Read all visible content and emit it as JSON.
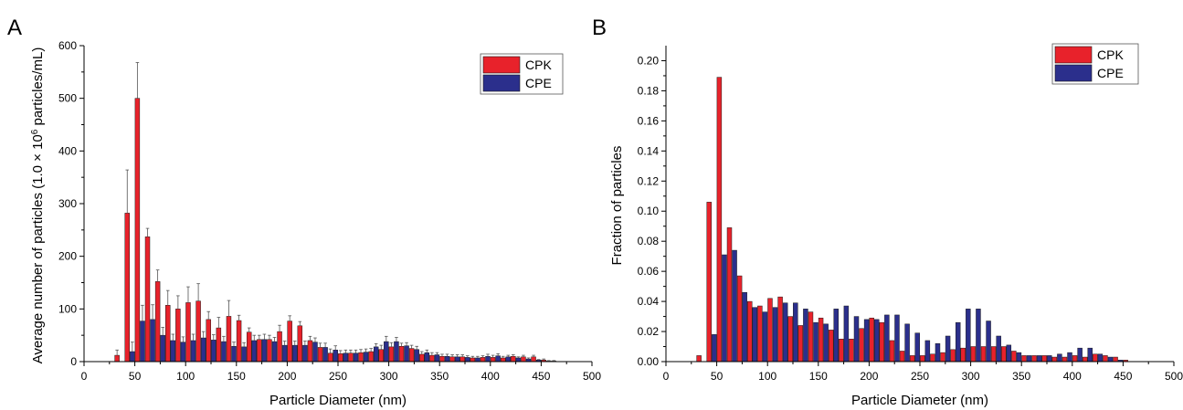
{
  "colors": {
    "cpk": "#e8222b",
    "cpe": "#2b2f8c",
    "axis": "#000000",
    "errbar": "#555555"
  },
  "chart_data": [
    {
      "panel_label": "A",
      "type": "bar",
      "xlabel": "Particle Diameter (nm)",
      "ylabel_parts": [
        "Average number of particles (1.0 × 10",
        "6",
        " particles/mL)"
      ],
      "xlim": [
        0,
        500
      ],
      "ylim": [
        0,
        600
      ],
      "xticks": [
        0,
        50,
        100,
        150,
        200,
        250,
        300,
        350,
        400,
        450,
        500
      ],
      "yticks": [
        0,
        100,
        200,
        300,
        400,
        500,
        600
      ],
      "x": [
        35,
        45,
        55,
        65,
        75,
        85,
        95,
        105,
        115,
        125,
        135,
        145,
        155,
        165,
        175,
        185,
        195,
        205,
        215,
        225,
        235,
        245,
        255,
        265,
        275,
        285,
        295,
        305,
        315,
        325,
        335,
        345,
        355,
        365,
        375,
        385,
        395,
        405,
        415,
        425,
        435,
        445,
        455,
        465
      ],
      "series": [
        {
          "name": "CPK",
          "color_key": "cpk",
          "values": [
            12,
            282,
            500,
            237,
            152,
            107,
            100,
            112,
            115,
            80,
            64,
            86,
            78,
            56,
            42,
            42,
            57,
            77,
            68,
            40,
            27,
            16,
            15,
            16,
            17,
            19,
            23,
            28,
            29,
            25,
            14,
            12,
            10,
            9,
            9,
            7,
            8,
            8,
            7,
            10,
            9,
            9,
            3,
            1
          ],
          "errors": [
            10,
            82,
            68,
            16,
            22,
            28,
            25,
            30,
            33,
            15,
            20,
            30,
            10,
            8,
            8,
            8,
            12,
            10,
            8,
            8,
            8,
            8,
            6,
            6,
            6,
            6,
            8,
            8,
            6,
            6,
            5,
            5,
            4,
            4,
            4,
            3,
            3,
            4,
            3,
            3,
            3,
            3,
            2,
            1
          ]
        },
        {
          "name": "CPE",
          "color_key": "cpe",
          "values": [
            0,
            19,
            77,
            80,
            50,
            40,
            37,
            40,
            45,
            41,
            38,
            29,
            28,
            40,
            42,
            38,
            31,
            31,
            31,
            37,
            27,
            22,
            16,
            16,
            18,
            28,
            38,
            38,
            30,
            23,
            17,
            13,
            10,
            9,
            8,
            7,
            10,
            11,
            9,
            7,
            5,
            3,
            1,
            0
          ],
          "errors": [
            0,
            18,
            30,
            28,
            15,
            12,
            10,
            12,
            12,
            10,
            10,
            8,
            8,
            10,
            10,
            8,
            8,
            8,
            8,
            8,
            8,
            8,
            6,
            6,
            6,
            6,
            10,
            8,
            6,
            6,
            5,
            4,
            4,
            4,
            3,
            3,
            4,
            4,
            3,
            2,
            2,
            1,
            1,
            0
          ]
        }
      ]
    },
    {
      "panel_label": "B",
      "type": "bar",
      "xlabel": "Particle Diameter (nm)",
      "ylabel": "Fraction of particles",
      "xlim": [
        0,
        500
      ],
      "ylim": [
        0,
        0.21
      ],
      "xticks": [
        0,
        50,
        100,
        150,
        200,
        250,
        300,
        350,
        400,
        450,
        500
      ],
      "yticks": [
        "0.00",
        "0.02",
        "0.04",
        "0.06",
        "0.08",
        "0.10",
        "0.12",
        "0.14",
        "0.16",
        "0.18",
        "0.20"
      ],
      "x": [
        35,
        45,
        55,
        65,
        75,
        85,
        95,
        105,
        115,
        125,
        135,
        145,
        155,
        165,
        175,
        185,
        195,
        205,
        215,
        225,
        235,
        245,
        255,
        265,
        275,
        285,
        295,
        305,
        315,
        325,
        335,
        345,
        355,
        365,
        375,
        385,
        395,
        405,
        415,
        425,
        435,
        445,
        455,
        465
      ],
      "series": [
        {
          "name": "CPK",
          "color_key": "cpk",
          "values": [
            0.004,
            0.106,
            0.189,
            0.089,
            0.057,
            0.04,
            0.037,
            0.042,
            0.043,
            0.03,
            0.024,
            0.033,
            0.029,
            0.021,
            0.015,
            0.015,
            0.022,
            0.029,
            0.026,
            0.014,
            0.007,
            0.004,
            0.004,
            0.005,
            0.006,
            0.008,
            0.009,
            0.01,
            0.01,
            0.01,
            0.01,
            0.007,
            0.004,
            0.004,
            0.004,
            0.003,
            0.003,
            0.004,
            0.003,
            0.005,
            0.004,
            0.003,
            0.001,
            0.0
          ]
        },
        {
          "name": "CPE",
          "color_key": "cpe",
          "values": [
            0.0,
            0.018,
            0.071,
            0.074,
            0.046,
            0.036,
            0.033,
            0.036,
            0.039,
            0.039,
            0.035,
            0.026,
            0.025,
            0.035,
            0.037,
            0.03,
            0.028,
            0.028,
            0.031,
            0.031,
            0.025,
            0.019,
            0.014,
            0.012,
            0.017,
            0.026,
            0.035,
            0.035,
            0.027,
            0.017,
            0.011,
            0.006,
            0.004,
            0.004,
            0.004,
            0.005,
            0.006,
            0.009,
            0.009,
            0.005,
            0.003,
            0.001,
            0.0,
            0.0
          ]
        }
      ]
    }
  ]
}
